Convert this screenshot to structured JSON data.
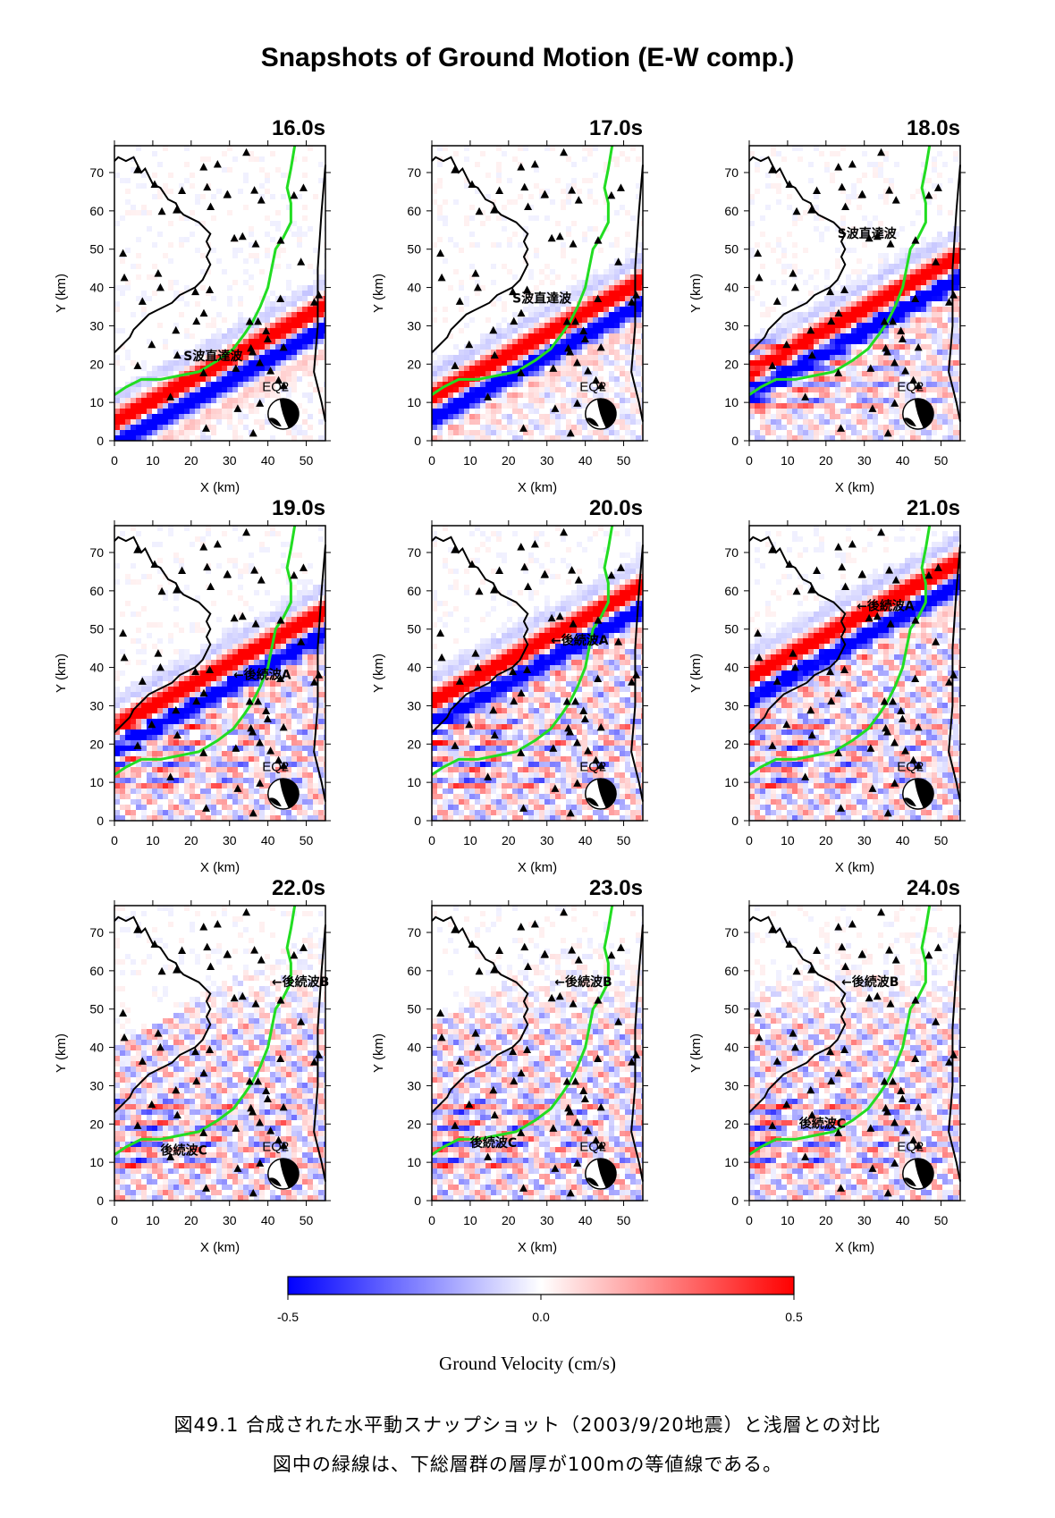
{
  "figure_title": "Snapshots of Ground Motion (E-W comp.)",
  "axes": {
    "xlabel": "X (km)",
    "ylabel": "Y (km)",
    "x_range": [
      0,
      55
    ],
    "y_range": [
      0,
      77
    ],
    "x_ticks": [
      "0",
      "10",
      "20",
      "30",
      "40",
      "50"
    ],
    "y_ticks": [
      "0",
      "10",
      "20",
      "30",
      "40",
      "50",
      "60",
      "70"
    ]
  },
  "event_label": "EQ2",
  "panels": [
    {
      "time": "16.0s",
      "annotations": [
        {
          "text": "S波直達波",
          "x": 18,
          "y": 21
        }
      ]
    },
    {
      "time": "17.0s",
      "annotations": [
        {
          "text": "S波直達波",
          "x": 21,
          "y": 36
        }
      ]
    },
    {
      "time": "18.0s",
      "annotations": [
        {
          "text": "S波直達波",
          "x": 23,
          "y": 53
        }
      ]
    },
    {
      "time": "19.0s",
      "annotations": [
        {
          "text": "←後続波A",
          "x": 31,
          "y": 37
        }
      ]
    },
    {
      "time": "20.0s",
      "annotations": [
        {
          "text": "←後続波A",
          "x": 31,
          "y": 46
        }
      ]
    },
    {
      "time": "21.0s",
      "annotations": [
        {
          "text": "←後続波A",
          "x": 28,
          "y": 55
        }
      ]
    },
    {
      "time": "22.0s",
      "annotations": [
        {
          "text": "←後続波B",
          "x": 41,
          "y": 56
        },
        {
          "text": "後続波C",
          "x": 12,
          "y": 12
        }
      ]
    },
    {
      "time": "23.0s",
      "annotations": [
        {
          "text": "←後続波B",
          "x": 32,
          "y": 56
        },
        {
          "text": "後続波C",
          "x": 10,
          "y": 14
        }
      ]
    },
    {
      "time": "24.0s",
      "annotations": [
        {
          "text": "←後続波B",
          "x": 24,
          "y": 56
        },
        {
          "text": "後続波C",
          "x": 13,
          "y": 19
        }
      ]
    }
  ],
  "colorbar": {
    "min": -0.5,
    "max": 0.5,
    "tick_labels": [
      "-0.5",
      "0.0",
      "0.5"
    ],
    "label": "Ground Velocity (cm/s)",
    "colors": [
      "#0000ff",
      "#ffffff",
      "#ff0000"
    ]
  },
  "contour_color": "#22dd22",
  "caption": [
    "図49.1 合成された水平動スナップショット（2003/9/20地震）と浅層との対比",
    "図中の緑線は、下総層群の層厚が100mの等値線である。"
  ]
}
